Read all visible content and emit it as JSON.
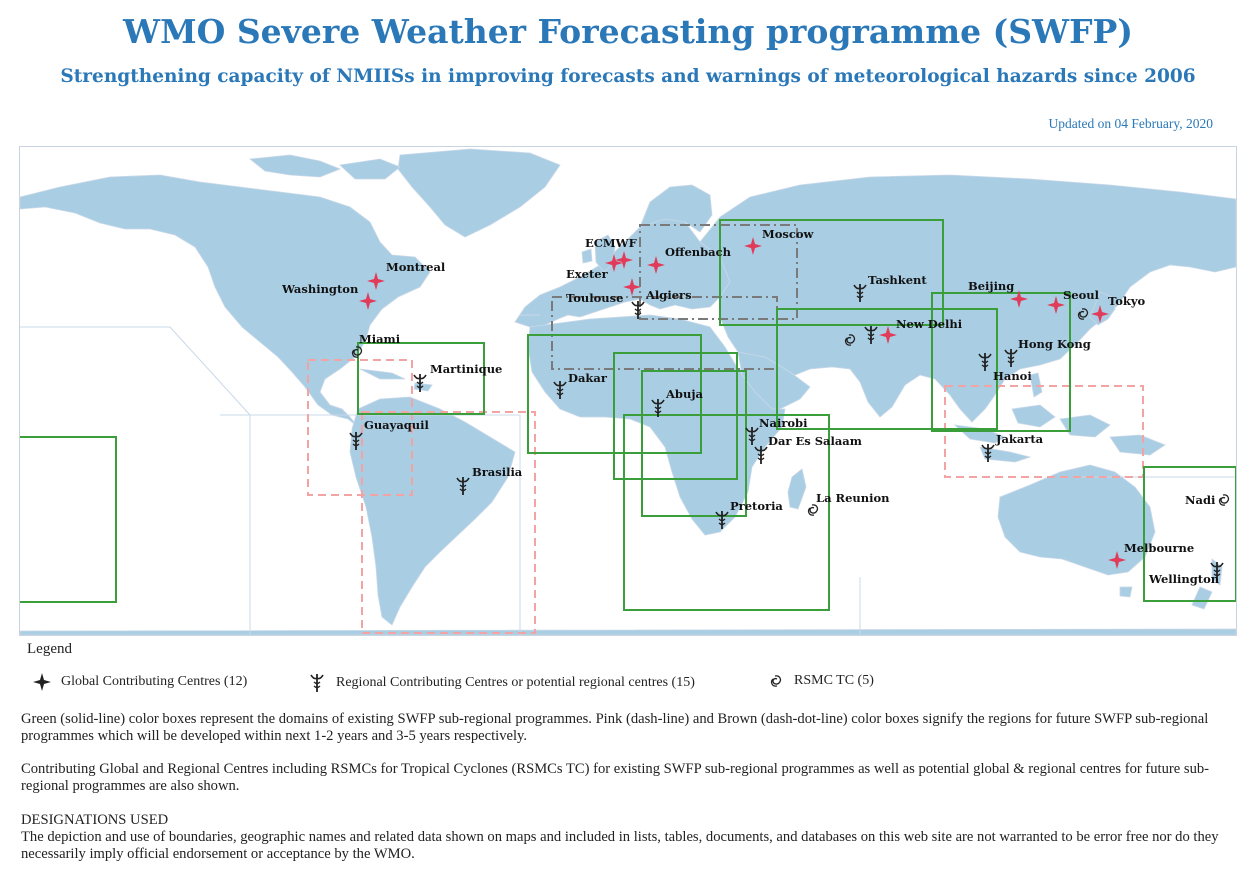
{
  "header": {
    "title": "WMO Severe Weather Forecasting programme (SWFP)",
    "subtitle": "Strengthening capacity of NMIISs in improving forecasts and warnings of meteorological hazards since 2006",
    "updated": "Updated on 04 February, 2020"
  },
  "colors": {
    "ocean": "#ffffff",
    "land": "#a9cde3",
    "boundary": "#c9d8e8",
    "existing_box": "#3a9e3a",
    "future_1_2_box": "#f2a3a3",
    "future_3_5_box": "#7a7a7a",
    "global_marker": "#e23b5a",
    "regional_marker": "#222222",
    "title": "#2a78b8"
  },
  "map": {
    "global_centres": [
      "ECMWF",
      "Exeter",
      "Offenbach",
      "Moscow",
      "Toulouse",
      "Washington",
      "Montreal",
      "Beijing",
      "Seoul",
      "Tokyo",
      "New Delhi",
      "Melbourne"
    ],
    "regional_centres": [
      "Algiers",
      "Martinique",
      "Dakar",
      "Abuja",
      "Nairobi",
      "Dar Es Salaam",
      "Pretoria",
      "Guayaquil",
      "Brasilia",
      "Tashkent",
      "New Delhi",
      "Hanoi",
      "Hong Kong",
      "Jakarta",
      "Wellington"
    ],
    "rsmc_tc": [
      "Miami",
      "New Delhi",
      "Tokyo",
      "La Reunion",
      "Nadi"
    ],
    "labels": {
      "montreal": "Montreal",
      "washington": "Washington",
      "miami": "Miami",
      "martinique": "Martinique",
      "guayaquil": "Guayaquil",
      "brasilia": "Brasilia",
      "ecmwf": "ECMWF",
      "exeter": "Exeter",
      "toulouse": "Toulouse",
      "offenbach": "Offenbach",
      "algiers": "Algiers",
      "moscow": "Moscow",
      "dakar": "Dakar",
      "abuja": "Abuja",
      "nairobi": "Nairobi",
      "dar_es_salaam": "Dar Es Salaam",
      "la_reunion": "La Reunion",
      "pretoria": "Pretoria",
      "tashkent": "Tashkent",
      "new_delhi": "New Delhi",
      "beijing": "Beijing",
      "seoul": "Seoul",
      "tokyo": "Tokyo",
      "hong_kong": "Hong Kong",
      "hanoi": "Hanoi",
      "jakarta": "Jakarta",
      "nadi": "Nadi",
      "melbourne": "Melbourne",
      "wellington": "Wellington"
    }
  },
  "legend": {
    "title": "Legend",
    "global": "Global Contributing Centres (12)",
    "regional": "Regional Contributing Centres or potential regional centres (15)",
    "rsmc": "RSMC TC (5)"
  },
  "notes": {
    "para1": "Green (solid-line) color boxes represent the domains of existing SWFP sub-regional programmes. Pink (dash-line) and Brown (dash-dot-line) color boxes signify the regions for future SWFP sub-regional programmes which will be developed within next 1-2 years and 3-5 years respectively.",
    "para2": "Contributing Global and Regional Centres including RSMCs for Tropical Cyclones (RSMCs TC) for existing SWFP sub-regional programmes as well as potential global & regional centres for future sub-regional programmes are also shown.",
    "designations_title": "DESIGNATIONS USED",
    "para3": "The depiction and use of boundaries, geographic names and related data shown on maps and included in lists, tables, documents, and databases on this web site are not warranted to be error free nor do they necessarily imply official endorsement or acceptance by the WMO."
  }
}
